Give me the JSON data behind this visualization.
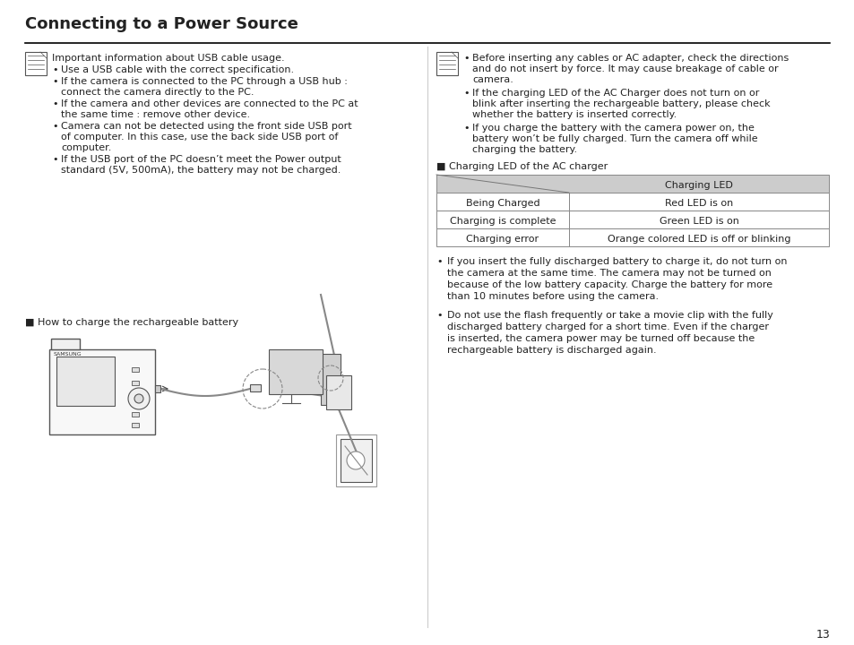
{
  "background_color": "#ffffff",
  "title": "Connecting to a Power Source",
  "page_number": "13",
  "left_note_text": "Important information about USB cable usage.",
  "left_bullets": [
    "Use a USB cable with the correct specification.",
    "If the camera is connected to the PC through a USB hub :\n    connect the camera directly to the PC.",
    "If the camera and other devices are connected to the PC at\n    the same time : remove other device.",
    "Camera can not be detected using the front side USB port\n    of computer. In this case, use the back side USB port of\n    computer.",
    "If the USB port of the PC doesn’t meet the Power output\n    standard (5V, 500mA), the battery may not be charged."
  ],
  "section_label": "■ How to charge the rechargeable battery",
  "right_bullets_top": [
    "Before inserting any cables or AC adapter, check the directions\nand do not insert by force. It may cause breakage of cable or\ncamera.",
    "If the charging LED of the AC Charger does not turn on or\nblink after inserting the rechargeable battery, please check\nwhether the battery is inserted correctly.",
    "If you charge the battery with the camera power on, the\nbattery won’t be fully charged. Turn the camera off while\ncharging the battery."
  ],
  "table_section_label": "■ Charging LED of the AC charger",
  "table_header_col2": "Charging LED",
  "table_rows": [
    [
      "Being Charged",
      "Red LED is on"
    ],
    [
      "Charging is complete",
      "Green LED is on"
    ],
    [
      "Charging error",
      "Orange colored LED is off or blinking"
    ]
  ],
  "right_bullets_bottom": [
    "If you insert the fully discharged battery to charge it, do not turn on\nthe camera at the same time. The camera may not be turned on\nbecause of the low battery capacity. Charge the battery for more\nthan 10 minutes before using the camera.",
    "Do not use the flash frequently or take a movie clip with the fully\ndischarged battery charged for a short time. Even if the charger\nis inserted, the camera power may be turned off because the\nrechargeable battery is discharged again."
  ],
  "divider_color": "#000000",
  "text_color": "#222222",
  "table_header_bg": "#cccccc",
  "table_border_color": "#888888",
  "font_size_title": 13,
  "font_size_body": 8.0,
  "font_size_small": 7.5
}
